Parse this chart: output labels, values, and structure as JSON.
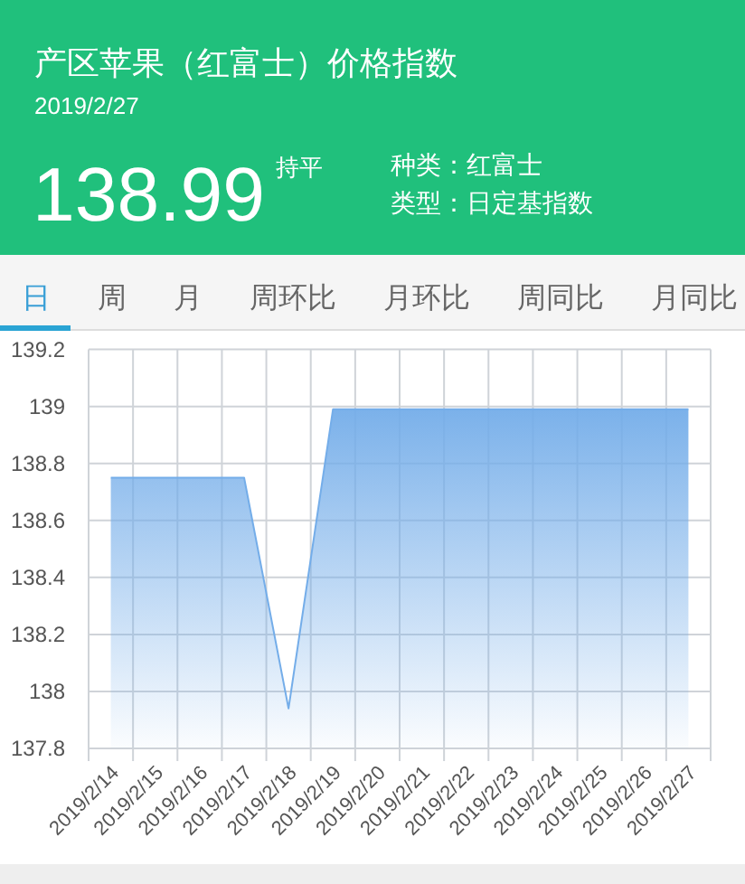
{
  "chart_data": {
    "type": "area",
    "title": "产区苹果（红富士）价格指数",
    "subtitle": "2019/2/27",
    "annotations": [
      "138.99",
      "持平",
      "种类：红富士",
      "类型：日定基指数",
      "日",
      "周",
      "月",
      "周环比",
      "月环比",
      "周同比",
      "月同比"
    ],
    "categories": [
      "2019/2/14",
      "2019/2/15",
      "2019/2/16",
      "2019/2/17",
      "2019/2/18",
      "2019/2/19",
      "2019/2/20",
      "2019/2/21",
      "2019/2/22",
      "2019/2/23",
      "2019/2/24",
      "2019/2/25",
      "2019/2/26",
      "2019/2/27"
    ],
    "values": [
      138.75,
      138.75,
      138.75,
      138.75,
      137.94,
      138.99,
      138.99,
      138.99,
      138.99,
      138.99,
      138.99,
      138.99,
      138.99,
      138.99
    ],
    "color": "#74ade9",
    "ylim": [
      137.8,
      139.2
    ],
    "yticks": [
      137.8,
      138,
      138.2,
      138.4,
      138.6,
      138.8,
      139,
      139.2
    ],
    "grid": true
  }
}
